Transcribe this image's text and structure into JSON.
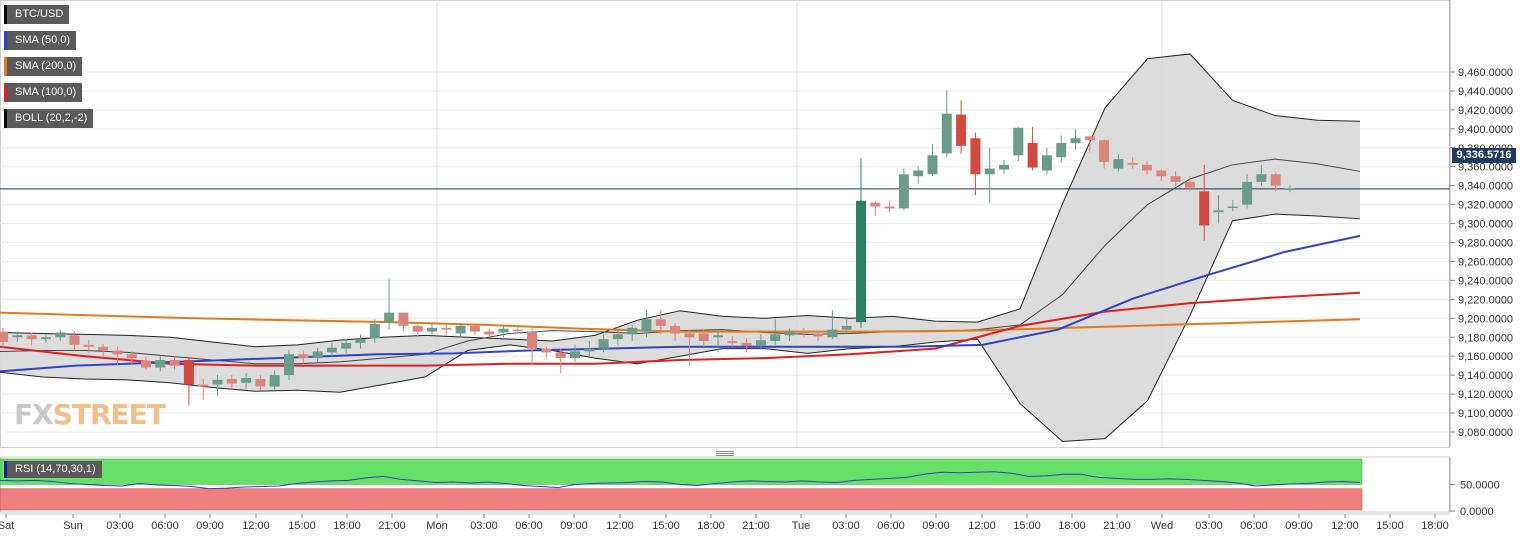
{
  "legends": {
    "symbol": "BTC/USD",
    "sma50": "SMA (50,0)",
    "sma200": "SMA (200,0)",
    "sma100": "SMA (100,0)",
    "boll": "BOLL (20,2,-2)",
    "rsi": "RSI (14,70,30,1)"
  },
  "current_price_label": "9,336.5716",
  "watermark": {
    "fx": "FX",
    "street": "STREET"
  },
  "colors": {
    "up": "#6b9c8a",
    "down": "#d9867a",
    "up_strong": "#2e7d64",
    "down_strong": "#d24a3f",
    "sma50": "#2d43c8",
    "sma100": "#e02020",
    "sma200": "#e07a20",
    "bands_fill": "#d8d8d8",
    "rsi_line": "#2d43c8",
    "rsi_overbought": "#66e066",
    "rsi_oversold": "#f08080"
  },
  "chart_data": [
    {
      "type": "candlestick",
      "title": "BTC/USD",
      "ylim": [
        9060,
        9480
      ],
      "y_ticks": [
        "9,080.0000",
        "9,100.0000",
        "9,120.0000",
        "9,140.0000",
        "9,160.0000",
        "9,180.0000",
        "9,200.0000",
        "9,220.0000",
        "9,240.0000",
        "9,260.0000",
        "9,280.0000",
        "9,300.0000",
        "9,320.0000",
        "9,340.0000",
        "9,360.0000",
        "9,380.0000",
        "9,400.0000",
        "9,420.0000",
        "9,440.0000",
        "9,460.0000"
      ],
      "x_ticks": [
        "Sat",
        "Sun",
        "03:00",
        "06:00",
        "09:00",
        "12:00",
        "15:00",
        "18:00",
        "21:00",
        "Mon",
        "03:00",
        "06:00",
        "09:00",
        "12:00",
        "15:00",
        "18:00",
        "21:00",
        "Tue",
        "03:00",
        "06:00",
        "09:00",
        "12:00",
        "15:00",
        "18:00",
        "21:00",
        "Wed",
        "03:00",
        "06:00",
        "09:00",
        "12:00",
        "15:00",
        "18:00"
      ],
      "current_price": 9336.5716,
      "candles": [
        [
          9186,
          9175,
          9190,
          9168
        ],
        [
          9180,
          9182,
          9186,
          9175
        ],
        [
          9182,
          9178,
          9185,
          9172
        ],
        [
          9178,
          9180,
          9183,
          9174
        ],
        [
          9180,
          9185,
          9188,
          9176
        ],
        [
          9182,
          9172,
          9186,
          9166
        ],
        [
          9172,
          9170,
          9177,
          9163
        ],
        [
          9170,
          9166,
          9173,
          9160
        ],
        [
          9166,
          9162,
          9170,
          9150
        ],
        [
          9162,
          9158,
          9165,
          9152
        ],
        [
          9155,
          9148,
          9159,
          9146
        ],
        [
          9148,
          9156,
          9160,
          9144
        ],
        [
          9156,
          9150,
          9160,
          9146
        ],
        [
          9156,
          9130,
          9159,
          9108
        ],
        [
          9130,
          9128,
          9136,
          9114
        ],
        [
          9130,
          9135,
          9140,
          9118
        ],
        [
          9136,
          9131,
          9140,
          9124
        ],
        [
          9132,
          9137,
          9142,
          9126
        ],
        [
          9136,
          9128,
          9140,
          9124
        ],
        [
          9128,
          9140,
          9145,
          9125
        ],
        [
          9140,
          9162,
          9166,
          9135
        ],
        [
          9162,
          9158,
          9166,
          9152
        ],
        [
          9158,
          9165,
          9169,
          9154
        ],
        [
          9164,
          9169,
          9174,
          9160
        ],
        [
          9168,
          9174,
          9178,
          9163
        ],
        [
          9174,
          9178,
          9183,
          9168
        ],
        [
          9179,
          9194,
          9199,
          9174
        ],
        [
          9196,
          9206,
          9242,
          9188
        ],
        [
          9206,
          9192,
          9206,
          9186
        ],
        [
          9192,
          9186,
          9195,
          9181
        ],
        [
          9186,
          9190,
          9194,
          9183
        ],
        [
          9190,
          9188,
          9193,
          9182
        ],
        [
          9184,
          9192,
          9195,
          9180
        ],
        [
          9192,
          9186,
          9194,
          9182
        ],
        [
          9186,
          9183,
          9189,
          9179
        ],
        [
          9185,
          9189,
          9193,
          9180
        ],
        [
          9188,
          9187,
          9192,
          9184
        ],
        [
          9186,
          9168,
          9190,
          9150
        ],
        [
          9168,
          9164,
          9170,
          9158
        ],
        [
          9164,
          9158,
          9168,
          9142
        ],
        [
          9158,
          9165,
          9172,
          9154
        ],
        [
          9165,
          9168,
          9176,
          9160
        ],
        [
          9168,
          9178,
          9183,
          9164
        ],
        [
          9178,
          9183,
          9189,
          9172
        ],
        [
          9183,
          9190,
          9193,
          9176
        ],
        [
          9186,
          9199,
          9209,
          9180
        ],
        [
          9199,
          9192,
          9209,
          9183
        ],
        [
          9192,
          9184,
          9195,
          9176
        ],
        [
          9184,
          9180,
          9188,
          9150
        ],
        [
          9184,
          9176,
          9188,
          9170
        ],
        [
          9180,
          9182,
          9186,
          9164
        ],
        [
          9176,
          9174,
          9181,
          9170
        ],
        [
          9174,
          9171,
          9179,
          9164
        ],
        [
          9171,
          9177,
          9183,
          9167
        ],
        [
          9176,
          9183,
          9199,
          9172
        ],
        [
          9182,
          9186,
          9189,
          9176
        ],
        [
          9186,
          9184,
          9190,
          9180
        ],
        [
          9184,
          9181,
          9187,
          9176
        ],
        [
          9180,
          9188,
          9209,
          9178
        ],
        [
          9188,
          9192,
          9202,
          9184
        ],
        [
          9196,
          9324,
          9369,
          9190
        ],
        [
          9322,
          9318,
          9324,
          9308
        ],
        [
          9318,
          9316,
          9324,
          9312
        ],
        [
          9316,
          9352,
          9358,
          9314
        ],
        [
          9350,
          9356,
          9360,
          9342
        ],
        [
          9352,
          9372,
          9384,
          9350
        ],
        [
          9374,
          9416,
          9441,
          9370
        ],
        [
          9415,
          9382,
          9430,
          9374
        ],
        [
          9390,
          9352,
          9396,
          9330
        ],
        [
          9352,
          9358,
          9380,
          9322
        ],
        [
          9357,
          9362,
          9367,
          9352
        ],
        [
          9372,
          9401,
          9402,
          9366
        ],
        [
          9385,
          9359,
          9402,
          9356
        ],
        [
          9356,
          9372,
          9380,
          9352
        ],
        [
          9370,
          9385,
          9393,
          9364
        ],
        [
          9385,
          9390,
          9400,
          9378
        ],
        [
          9392,
          9388,
          9392,
          9375
        ],
        [
          9388,
          9365,
          9389,
          9358
        ],
        [
          9358,
          9368,
          9373,
          9355
        ],
        [
          9364,
          9362,
          9370,
          9358
        ],
        [
          9362,
          9356,
          9366,
          9352
        ],
        [
          9356,
          9350,
          9358,
          9345
        ],
        [
          9350,
          9344,
          9355,
          9340
        ],
        [
          9344,
          9338,
          9350,
          9334
        ],
        [
          9334,
          9298,
          9362,
          9282
        ],
        [
          9312,
          9314,
          9330,
          9300
        ],
        [
          9318,
          9318,
          9325,
          9313
        ],
        [
          9320,
          9344,
          9352,
          9316
        ],
        [
          9344,
          9352,
          9362,
          9340
        ],
        [
          9352,
          9340,
          9354,
          9334
        ],
        [
          9337,
          9337,
          9341,
          9333
        ]
      ],
      "bollinger": {
        "upper": [
          9185,
          9184,
          9183,
          9182,
          9180,
          9175,
          9170,
          9172,
          9177,
          9180,
          9182,
          9180,
          9178,
          9176,
          9182,
          9198,
          9208,
          9202,
          9200,
          9203,
          9200,
          9202,
          9197,
          9196,
          9210,
          9321,
          9422,
          9474,
          9479,
          9430,
          9414,
          9409,
          9408
        ],
        "middle": [
          9165,
          9166,
          9166,
          9164,
          9160,
          9156,
          9152,
          9152,
          9154,
          9158,
          9162,
          9176,
          9184,
          9187,
          9186,
          9184,
          9187,
          9188,
          9185,
          9183,
          9184,
          9186,
          9186,
          9188,
          9193,
          9225,
          9277,
          9320,
          9347,
          9362,
          9368,
          9363,
          9355
        ],
        "lower": [
          9143,
          9138,
          9136,
          9135,
          9132,
          9127,
          9123,
          9124,
          9122,
          9130,
          9138,
          9166,
          9172,
          9166,
          9158,
          9152,
          9160,
          9168,
          9168,
          9163,
          9168,
          9170,
          9175,
          9178,
          9110,
          9070,
          9073,
          9113,
          9203,
          9303,
          9310,
          9308,
          9305
        ]
      },
      "sma50": [
        9144,
        9150,
        9153,
        9156,
        9159,
        9162,
        9163,
        9166,
        9168,
        9170,
        9170,
        9170,
        9170,
        9172,
        9188,
        9221,
        9246,
        9270,
        9287
      ],
      "sma100": [
        9170,
        9160,
        9152,
        9150,
        9150,
        9150,
        9152,
        9152,
        9156,
        9158,
        9162,
        9168,
        9192,
        9207,
        9216,
        9222,
        9227
      ],
      "sma200": [
        9206,
        9203,
        9200,
        9198,
        9196,
        9193,
        9189,
        9186,
        9186,
        9186,
        9187,
        9190,
        9193,
        9196,
        9199
      ]
    },
    {
      "type": "line",
      "title": "RSI (14,70,30,1)",
      "ylim": [
        0,
        100
      ],
      "y_ticks": [
        "50.0000",
        "0.0000"
      ],
      "overbought": 70,
      "oversold": 30,
      "values": [
        58,
        57,
        58,
        56,
        52,
        50,
        48,
        47,
        52,
        49,
        48,
        46,
        42,
        43,
        45,
        46,
        47,
        52,
        55,
        57,
        58,
        63,
        66,
        60,
        57,
        54,
        55,
        53,
        55,
        52,
        48,
        46,
        44,
        50,
        52,
        53,
        54,
        56,
        55,
        50,
        48,
        52,
        55,
        57,
        56,
        55,
        57,
        55,
        54,
        58,
        60,
        62,
        64,
        70,
        74,
        73,
        74,
        75,
        72,
        66,
        67,
        70,
        70,
        64,
        62,
        60,
        60,
        61,
        60,
        58,
        56,
        53,
        47,
        49,
        51,
        52,
        55,
        56,
        54
      ]
    }
  ]
}
